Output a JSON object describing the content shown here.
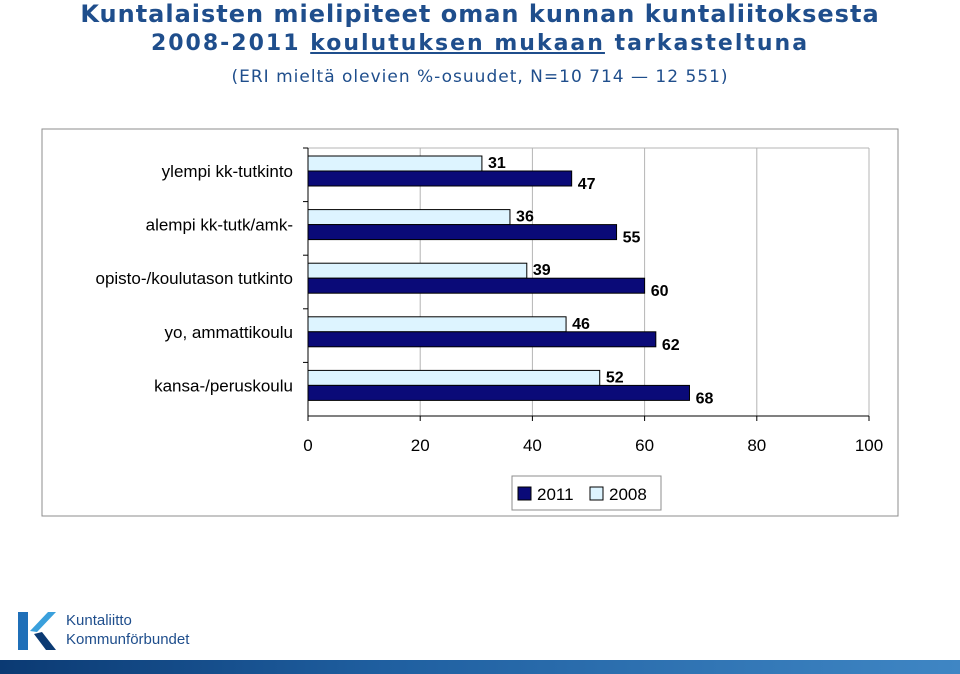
{
  "title": {
    "line1": "Kuntalaisten mielipiteet oman kunnan kuntaliitoksesta",
    "line2_a": "2008-2011 ",
    "line2_b": "koulutuksen mukaan",
    "line2_c": " tarkasteltuna",
    "line3": "(ERI mieltä olevien %-osuudet, N=10 714 — 12 551)"
  },
  "chart_data": {
    "type": "bar",
    "orientation": "horizontal",
    "categories": [
      "ylempi kk-tutkinto",
      "alempi kk-tutk/amk-",
      "opisto-/koulutason tutkinto",
      "yo, ammattikoulu",
      "kansa-/peruskoulu"
    ],
    "series": [
      {
        "name": "2008",
        "values": [
          31,
          36,
          39,
          46,
          52
        ],
        "color": "#ddf4ff"
      },
      {
        "name": "2011",
        "values": [
          47,
          55,
          60,
          62,
          68
        ],
        "color": "#0a0a78"
      }
    ],
    "xlim": [
      0,
      100
    ],
    "xticks": [
      "0",
      "20",
      "40",
      "60",
      "80",
      "100"
    ],
    "grid": true,
    "legend": {
      "position": "bottom",
      "order": [
        "2011",
        "2008"
      ]
    }
  },
  "logo": {
    "line1": "Kuntaliitto",
    "line2": "Kommunförbundet"
  },
  "colors": {
    "title": "#1f4e8c",
    "bar_2011": "#0a0a78",
    "bar_2008": "#ddf4ff"
  }
}
